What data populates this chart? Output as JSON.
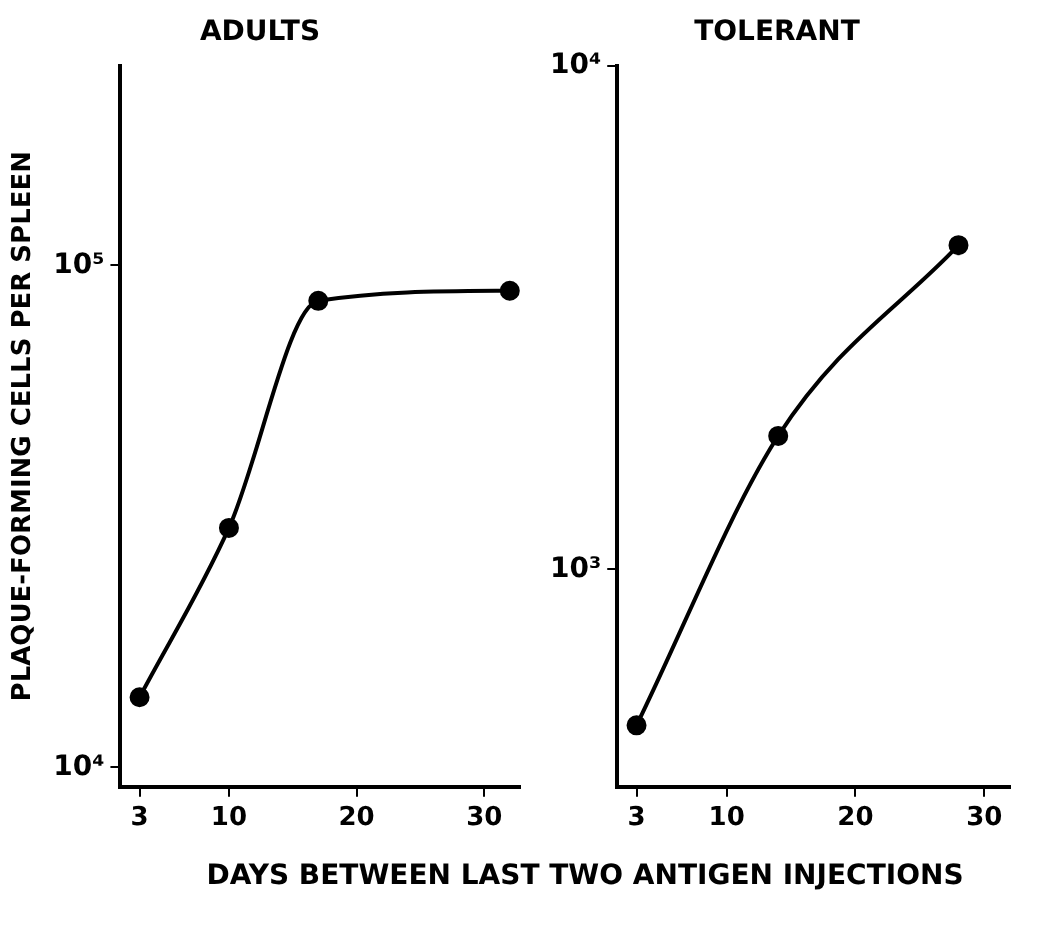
{
  "chart_data": [
    {
      "type": "line",
      "title": "ADULTS",
      "ylabel": "PLAQUE-FORMING CELLS PER SPLEEN",
      "xlabel": "DAYS BETWEEN LAST TWO ANTIGEN INJECTIONS",
      "log": "y",
      "grid": false,
      "legend": false,
      "marker": "circle",
      "line_style": "solid",
      "x": [
        3,
        10,
        17,
        32
      ],
      "series": [
        {
          "color": "#000000",
          "values": [
            13800,
            30000,
            85000,
            89000
          ]
        }
      ],
      "xlim": [
        1.5,
        32.8
      ],
      "xticks": [
        3,
        10,
        20,
        30
      ],
      "ylim": [
        9150,
        250000
      ],
      "yticks": [
        {
          "value": 10000,
          "label": "10⁴"
        },
        {
          "value": 100000,
          "label": "10⁵"
        }
      ]
    },
    {
      "type": "line",
      "title": "TOLERANT",
      "log": "y",
      "grid": false,
      "legend": false,
      "marker": "circle",
      "line_style": "solid",
      "x": [
        3,
        14,
        28
      ],
      "series": [
        {
          "color": "#000000",
          "values": [
            490,
            1840,
            4400
          ]
        }
      ],
      "xlim": [
        1.5,
        32
      ],
      "xticks": [
        3,
        10,
        20,
        30
      ],
      "ylim": [
        370,
        10000
      ],
      "yticks": [
        {
          "value": 1000,
          "label": "10³"
        },
        {
          "value": 10000,
          "label": "10⁴"
        }
      ]
    }
  ]
}
